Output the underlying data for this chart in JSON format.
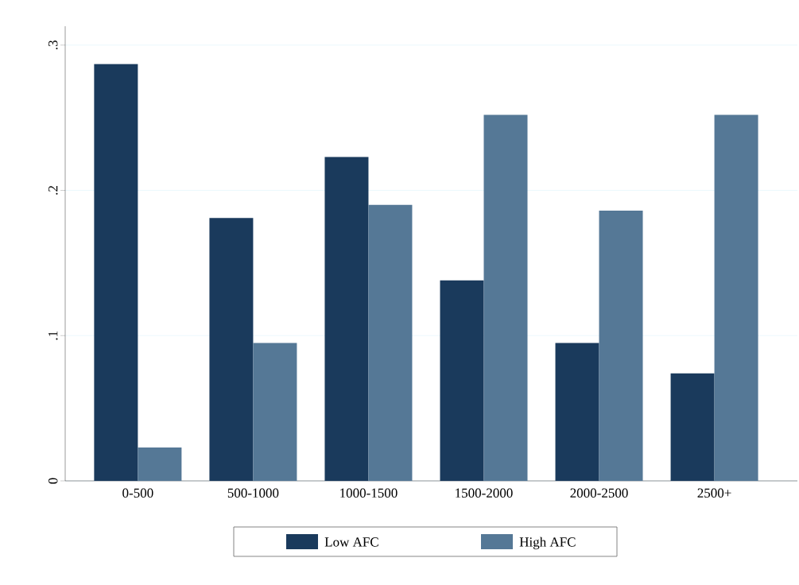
{
  "chart_data": {
    "type": "bar",
    "categories": [
      "0-500",
      "500-1000",
      "1000-1500",
      "1500-2000",
      "2000-2500",
      "2500+"
    ],
    "series": [
      {
        "name": "Low AFC",
        "color": "#1a3a5c",
        "values": [
          0.287,
          0.181,
          0.223,
          0.138,
          0.095,
          0.074
        ]
      },
      {
        "name": "High AFC",
        "color": "#557896",
        "values": [
          0.023,
          0.095,
          0.19,
          0.252,
          0.186,
          0.252
        ]
      }
    ],
    "ylim": [
      0,
      0.313
    ],
    "yticks": [
      {
        "value": 0,
        "label": "0"
      },
      {
        "value": 0.1,
        "label": ".1"
      },
      {
        "value": 0.2,
        "label": ".2"
      },
      {
        "value": 0.3,
        "label": ".3"
      }
    ],
    "grid": "y",
    "legend": "bottom"
  }
}
